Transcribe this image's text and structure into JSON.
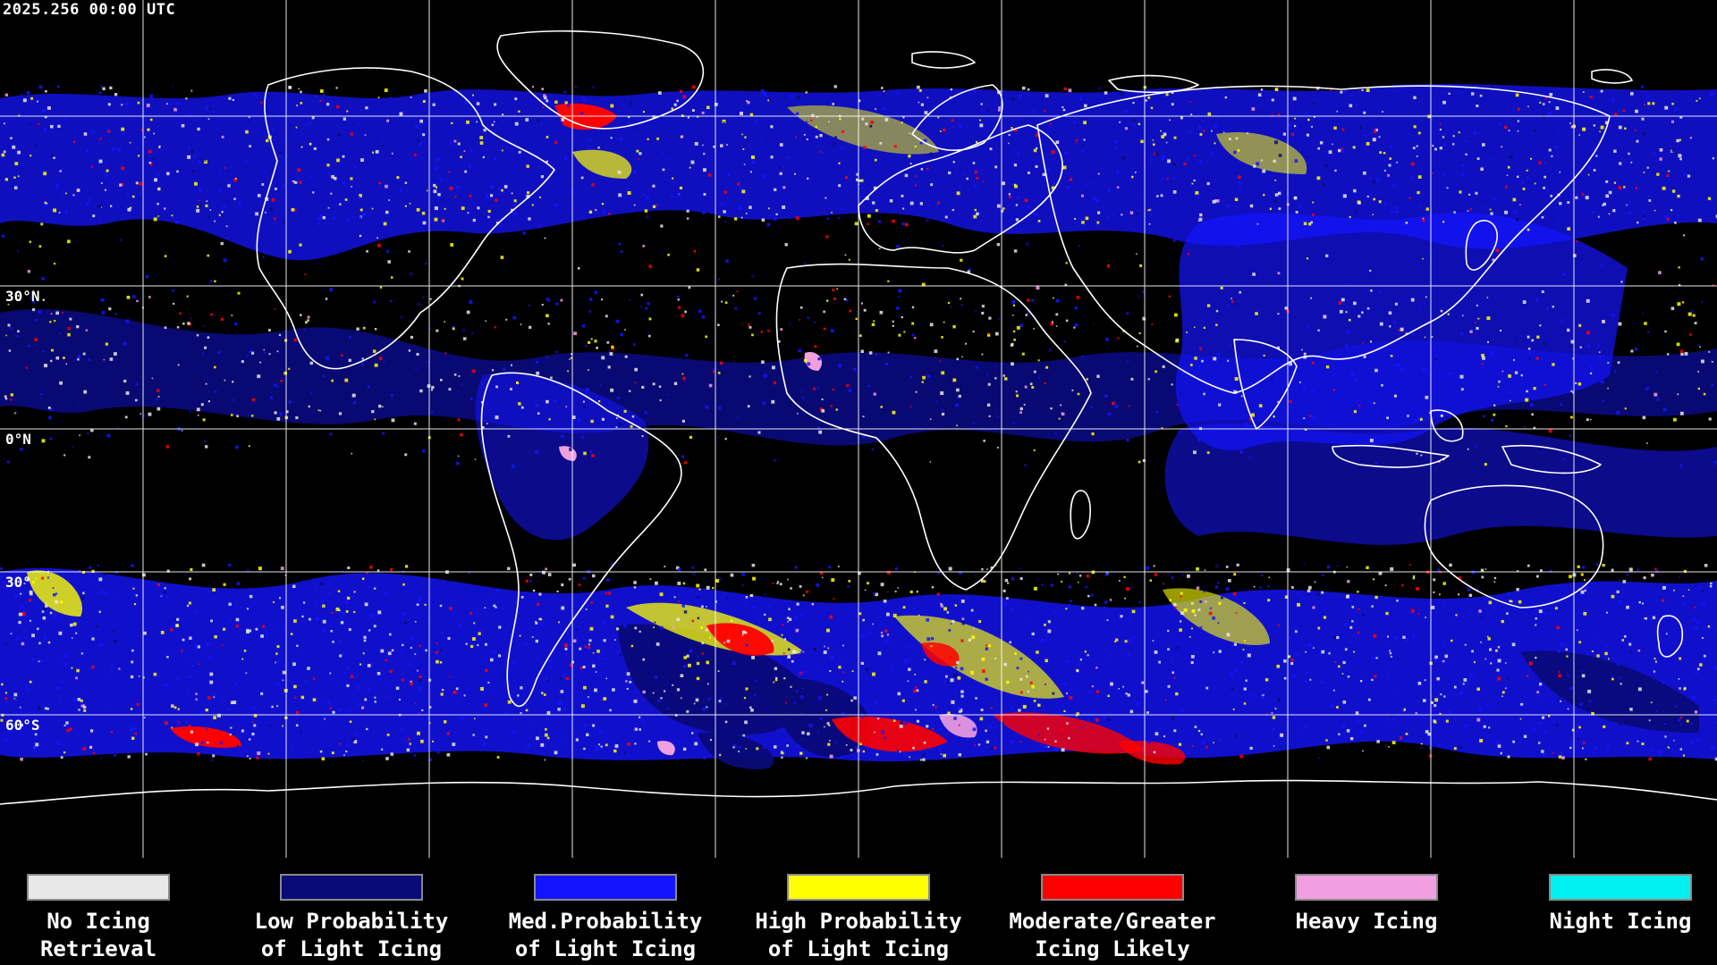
{
  "timestamp": "2025.256 00:00 UTC",
  "latitude_labels": [
    "30°N",
    "0°N",
    "30°",
    "60°S"
  ],
  "legend": [
    {
      "label": "No Icing\nRetrieval",
      "color": "#e8e8e8"
    },
    {
      "label": "Low Probability\nof Light Icing",
      "color": "#0a0a78"
    },
    {
      "label": "Med.Probability\nof Light Icing",
      "color": "#1414ff"
    },
    {
      "label": "High Probability\nof Light Icing",
      "color": "#ffff00"
    },
    {
      "label": "Moderate/Greater\nIcing Likely",
      "color": "#ff0000"
    },
    {
      "label": "Heavy Icing",
      "color": "#f0a0e0"
    },
    {
      "label": "Night Icing",
      "color": "#00f0f0"
    }
  ]
}
